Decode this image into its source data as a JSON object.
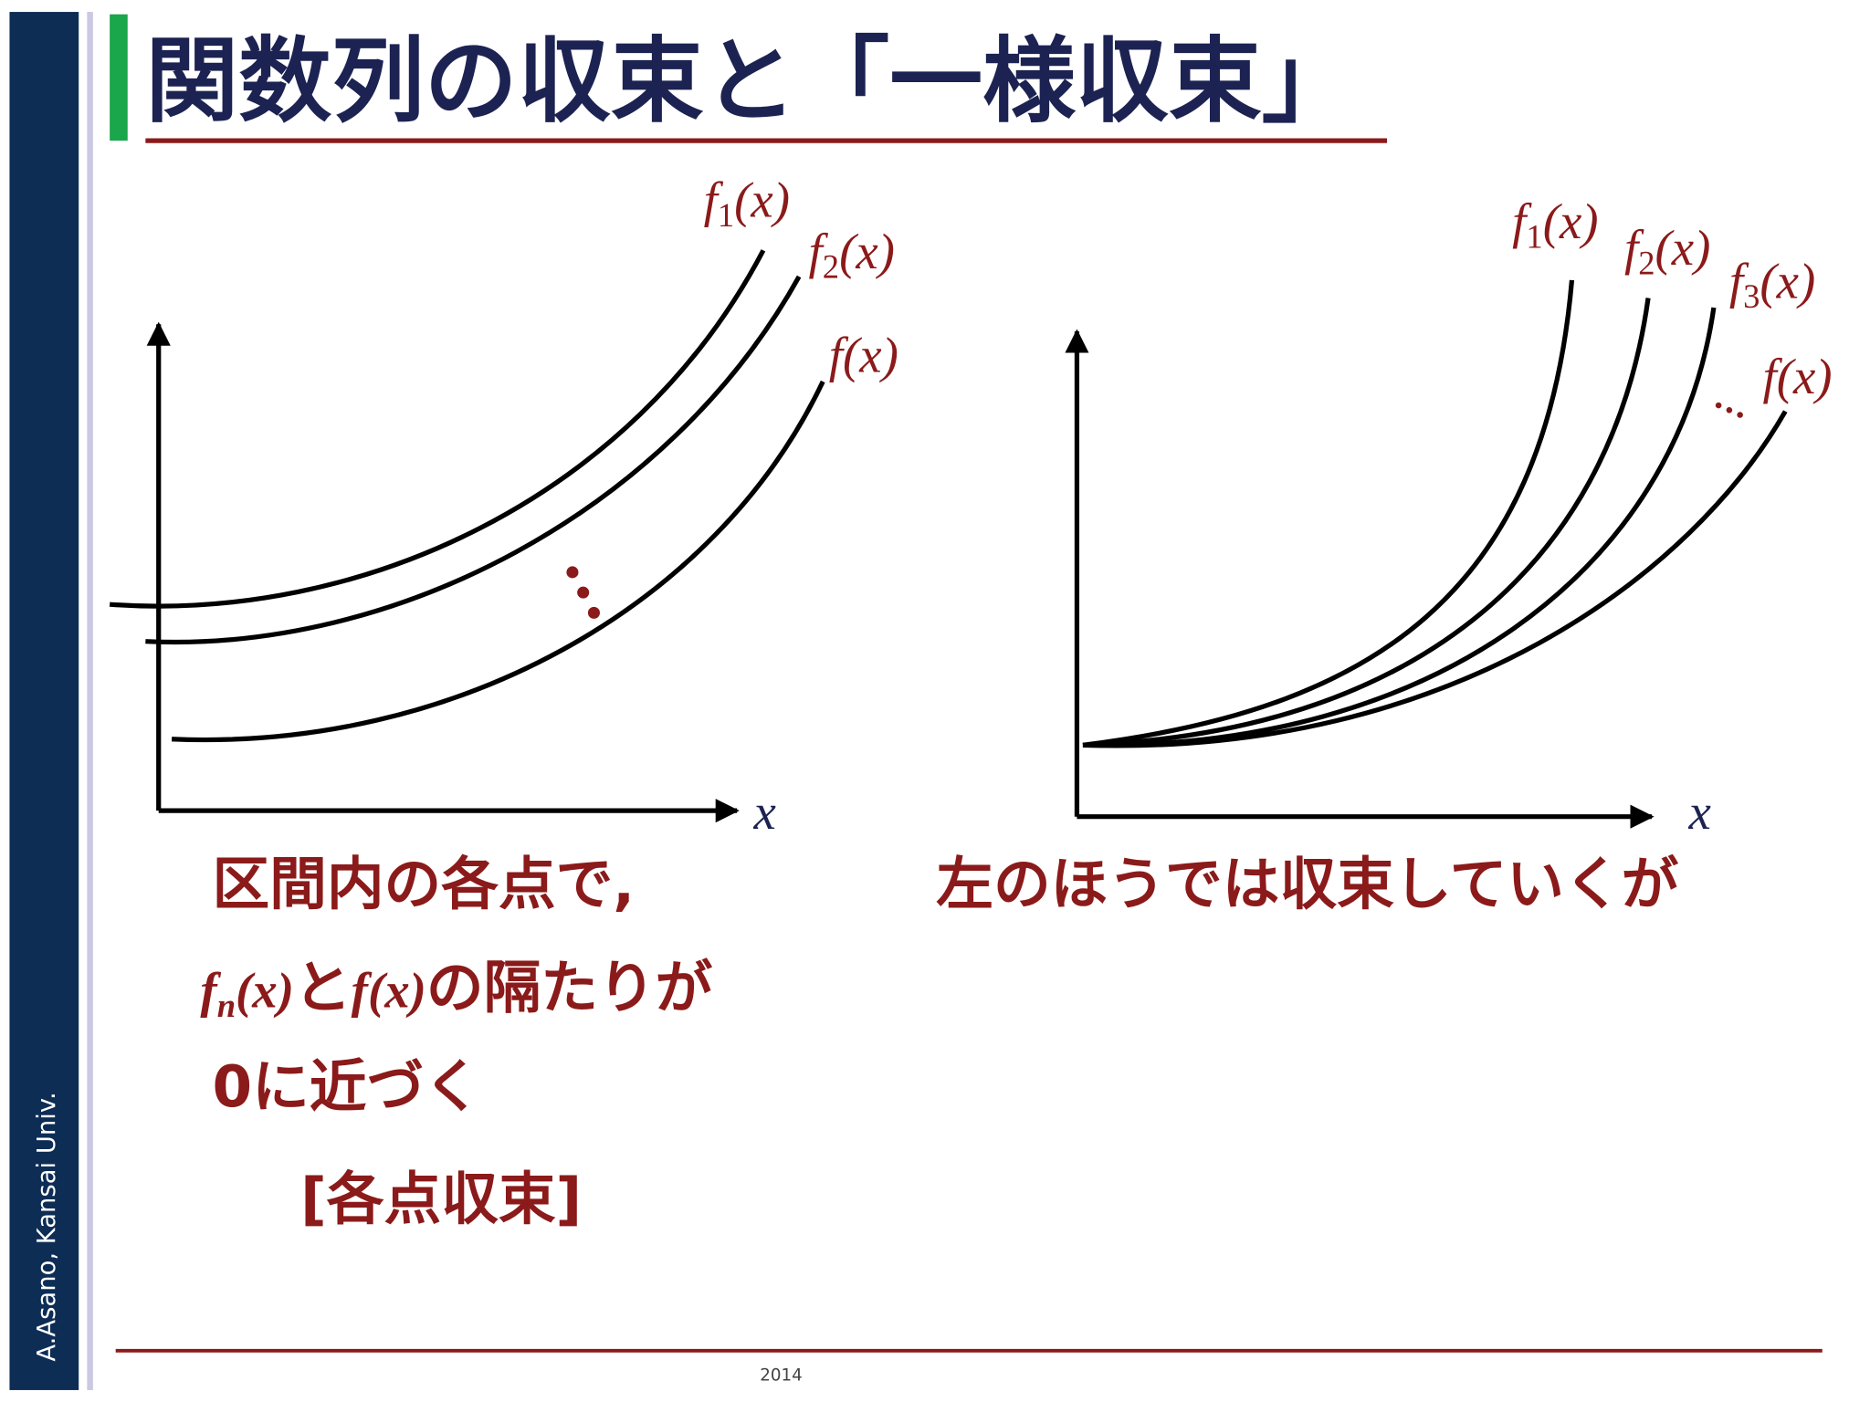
{
  "sidebar": "A.Asano, Kansai Univ.",
  "title": "関数列の収束と「一様収束」",
  "footer": "2014",
  "left_diagram": {
    "labels": [
      {
        "name": "f",
        "subscript": "1",
        "argument": "(x)"
      },
      {
        "name": "f",
        "subscript": "2",
        "argument": "(x)"
      },
      {
        "name": "f",
        "argument": "(x)"
      }
    ],
    "x_axis_label": "x",
    "text": [
      [
        "区間内の各点で,"
      ],
      [
        "f",
        "n",
        "(x)",
        "と",
        "f",
        "(x)",
        "の隔たりが"
      ],
      [
        "0に近づく"
      ],
      [
        "[各点収束]"
      ]
    ]
  },
  "right_diagram": {
    "labels": [
      {
        "name": "f",
        "subscript": "1",
        "argument": "(x)"
      },
      {
        "name": "f",
        "subscript": "2",
        "argument": "(x)"
      },
      {
        "name": "f",
        "subscript": "3",
        "argument": "(x)"
      },
      {
        "name": "f",
        "argument": "(x)"
      }
    ],
    "x_axis_label": "x",
    "text": "左のほうでは収束していくが"
  }
}
